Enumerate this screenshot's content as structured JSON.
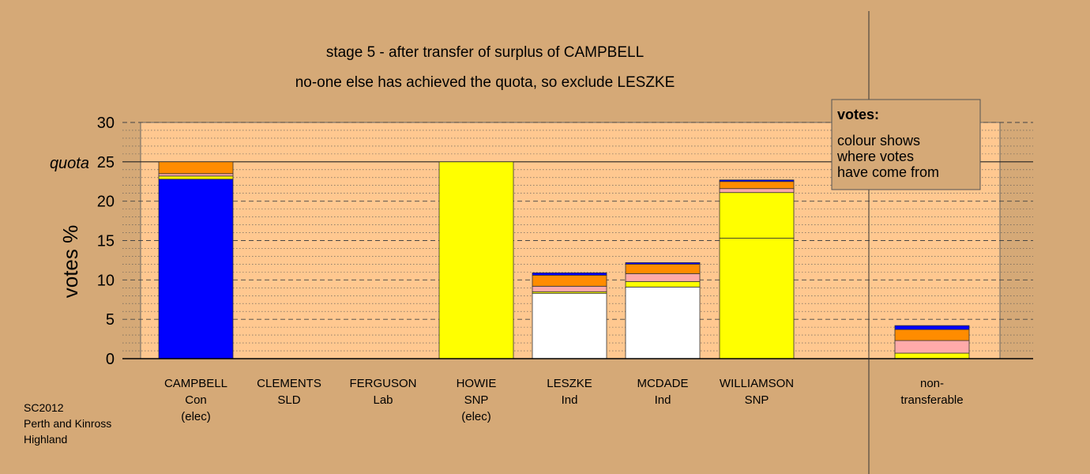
{
  "chart_data": {
    "type": "bar",
    "title": "stage 5 - after transfer of surplus of CAMPBELL",
    "subtitle": "no-one else has achieved the quota, so exclude LESZKE",
    "ylabel": "votes %",
    "ylim": [
      0,
      30
    ],
    "yticks": [
      0,
      5,
      10,
      15,
      20,
      25,
      30
    ],
    "quota": {
      "label": "quota",
      "value": 25
    },
    "grid": true,
    "categories": [
      {
        "name": "CAMPBELL",
        "party": "Con",
        "note": "(elec)"
      },
      {
        "name": "CLEMENTS",
        "party": "SLD",
        "note": ""
      },
      {
        "name": "FERGUSON",
        "party": "Lab",
        "note": ""
      },
      {
        "name": "HOWIE",
        "party": "SNP",
        "note": "(elec)"
      },
      {
        "name": "LESZKE",
        "party": "Ind",
        "note": ""
      },
      {
        "name": "MCDADE",
        "party": "Ind",
        "note": ""
      },
      {
        "name": "WILLIAMSON",
        "party": "SNP",
        "note": ""
      }
    ],
    "extra_category": {
      "name": "non-",
      "party": "transferable"
    },
    "stacks": [
      [
        {
          "color": "#0000ff",
          "value": 22.8
        },
        {
          "color": "#ffff00",
          "value": 0.4
        },
        {
          "color": "#ffaaaa",
          "value": 0.3
        },
        {
          "color": "#ff8c00",
          "value": 1.5
        }
      ],
      [],
      [],
      [
        {
          "color": "#ffff00",
          "value": 25.0
        }
      ],
      [
        {
          "color": "#ffffff",
          "value": 8.3
        },
        {
          "color": "#ffff00",
          "value": 0.2
        },
        {
          "color": "#ffaaaa",
          "value": 0.7
        },
        {
          "color": "#ff8c00",
          "value": 1.4
        },
        {
          "color": "#0000ff",
          "value": 0.3
        }
      ],
      [
        {
          "color": "#ffffff",
          "value": 9.1
        },
        {
          "color": "#ffff00",
          "value": 0.7
        },
        {
          "color": "#ffaaaa",
          "value": 1.0
        },
        {
          "color": "#ff8c00",
          "value": 1.2
        },
        {
          "color": "#0000ff",
          "value": 0.2
        }
      ],
      [
        {
          "color": "#ffff00",
          "value": 15.3
        },
        {
          "color": "#ffff00",
          "value": 5.8
        },
        {
          "color": "#ffaaaa",
          "value": 0.5
        },
        {
          "color": "#ff8c00",
          "value": 0.9
        },
        {
          "color": "#0000ff",
          "value": 0.2
        }
      ],
      [
        {
          "color": "#ffff00",
          "value": 0.7
        },
        {
          "color": "#ffaaaa",
          "value": 1.6
        },
        {
          "color": "#ff8c00",
          "value": 1.4
        },
        {
          "color": "#0000ff",
          "value": 0.5
        }
      ]
    ],
    "legend": {
      "title": "votes:",
      "lines": [
        "colour shows",
        "where votes",
        "have come from"
      ],
      "placement": "top-right"
    },
    "colors": {
      "background": "#d5a977",
      "plot_area": "#ffc890"
    }
  },
  "footnote": {
    "line1": "SC2012",
    "line2": "Perth and Kinross",
    "line3": "Highland"
  }
}
